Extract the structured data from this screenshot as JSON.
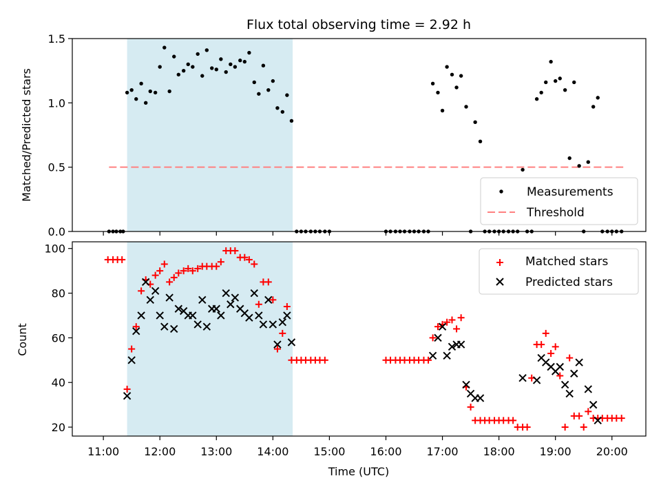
{
  "chart_data": [
    {
      "type": "scatter",
      "title": "Flux total observing time = 2.92 h",
      "xlabel": "",
      "ylabel": "Matched/Predicted stars",
      "xlim": [
        10.45,
        20.6
      ],
      "ylim": [
        0,
        1.5
      ],
      "yticks": [
        0.0,
        0.5,
        1.0,
        1.5
      ],
      "ytick_labels": [
        "0.0",
        "0.5",
        "1.0",
        "1.5"
      ],
      "grid": false,
      "legend_position": "lower-right",
      "shaded_region": {
        "x": [
          11.42,
          14.35
        ],
        "color": "#add8e6"
      },
      "threshold": {
        "name": "Threshold",
        "y": 0.5,
        "x": [
          11.1,
          20.2
        ],
        "color": "#ff8080",
        "style": "dashed"
      },
      "series": [
        {
          "name": "Measurements",
          "marker": "dot",
          "color": "#000000",
          "x": [
            11.1,
            11.17,
            11.23,
            11.3,
            11.35,
            11.42,
            11.5,
            11.58,
            11.67,
            11.75,
            11.83,
            11.92,
            12.0,
            12.08,
            12.17,
            12.25,
            12.33,
            12.42,
            12.5,
            12.58,
            12.67,
            12.75,
            12.83,
            12.92,
            13.0,
            13.08,
            13.17,
            13.25,
            13.33,
            13.42,
            13.5,
            13.58,
            13.67,
            13.75,
            13.83,
            13.92,
            14.0,
            14.08,
            14.17,
            14.25,
            14.33,
            14.42,
            14.5,
            14.58,
            14.67,
            14.75,
            14.83,
            14.92,
            15.0,
            16.0,
            16.08,
            16.17,
            16.25,
            16.33,
            16.42,
            16.5,
            16.58,
            16.67,
            16.75,
            16.83,
            16.92,
            17.0,
            17.08,
            17.17,
            17.25,
            17.33,
            17.42,
            17.5,
            17.58,
            17.67,
            17.75,
            17.83,
            17.92,
            18.0,
            18.08,
            18.17,
            18.25,
            18.33,
            18.42,
            18.5,
            18.58,
            18.67,
            18.75,
            18.83,
            18.92,
            19.0,
            19.08,
            19.17,
            19.25,
            19.33,
            19.42,
            19.5,
            19.58,
            19.67,
            19.75,
            19.83,
            19.92,
            20.0,
            20.08,
            20.17
          ],
          "y": [
            0,
            0,
            0,
            0,
            0,
            1.08,
            1.1,
            1.03,
            1.15,
            1.0,
            1.09,
            1.08,
            1.28,
            1.43,
            1.09,
            1.36,
            1.22,
            1.25,
            1.3,
            1.28,
            1.38,
            1.21,
            1.41,
            1.27,
            1.26,
            1.34,
            1.24,
            1.3,
            1.28,
            1.33,
            1.32,
            1.39,
            1.16,
            1.07,
            1.29,
            1.1,
            1.17,
            0.96,
            0.93,
            1.06,
            0.86,
            0,
            0,
            0,
            0,
            0,
            0,
            0,
            0,
            0,
            0,
            0,
            0,
            0,
            0,
            0,
            0,
            0,
            0,
            1.15,
            1.08,
            0.94,
            1.28,
            1.22,
            1.12,
            1.21,
            0.97,
            0,
            0.85,
            0.7,
            0,
            0,
            0,
            0,
            0,
            0,
            0,
            0,
            0.48,
            0,
            0,
            1.03,
            1.08,
            1.16,
            1.32,
            1.17,
            1.19,
            1.1,
            0.57,
            1.16,
            0.51,
            0,
            0.54,
            0.97,
            1.04,
            0,
            0,
            0,
            0,
            0
          ]
        }
      ]
    },
    {
      "type": "scatter",
      "title": "",
      "xlabel": "Time (UTC)",
      "ylabel": "Count",
      "xlim": [
        10.45,
        20.6
      ],
      "ylim": [
        16,
        103
      ],
      "yticks": [
        20,
        40,
        60,
        80,
        100
      ],
      "ytick_labels": [
        "20",
        "40",
        "60",
        "80",
        "100"
      ],
      "xticks": [
        11,
        12,
        13,
        14,
        15,
        16,
        17,
        18,
        19,
        20
      ],
      "xtick_labels": [
        "11:00",
        "12:00",
        "13:00",
        "14:00",
        "15:00",
        "16:00",
        "17:00",
        "18:00",
        "19:00",
        "20:00"
      ],
      "grid": false,
      "legend_position": "top-right",
      "shaded_region": {
        "x": [
          11.42,
          14.35
        ],
        "color": "#add8e6"
      },
      "series": [
        {
          "name": "Matched stars",
          "marker": "plus",
          "color": "#ff0000",
          "x": [
            11.08,
            11.17,
            11.25,
            11.33,
            11.42,
            11.5,
            11.58,
            11.67,
            11.75,
            11.83,
            11.92,
            12.0,
            12.08,
            12.17,
            12.25,
            12.33,
            12.42,
            12.5,
            12.58,
            12.67,
            12.75,
            12.83,
            12.92,
            13.0,
            13.08,
            13.17,
            13.25,
            13.33,
            13.42,
            13.5,
            13.58,
            13.67,
            13.75,
            13.83,
            13.92,
            14.0,
            14.08,
            14.17,
            14.25,
            14.33,
            14.42,
            14.5,
            14.58,
            14.67,
            14.75,
            14.83,
            14.92,
            16.0,
            16.08,
            16.17,
            16.25,
            16.33,
            16.42,
            16.5,
            16.58,
            16.67,
            16.75,
            16.83,
            16.92,
            17.0,
            17.08,
            17.17,
            17.25,
            17.33,
            17.42,
            17.5,
            17.58,
            17.67,
            17.75,
            17.83,
            17.92,
            18.0,
            18.08,
            18.17,
            18.25,
            18.33,
            18.42,
            18.5,
            18.58,
            18.67,
            18.75,
            18.83,
            18.92,
            19.0,
            19.08,
            19.17,
            19.25,
            19.33,
            19.42,
            19.5,
            19.58,
            19.67,
            19.75,
            19.83,
            19.92,
            20.0,
            20.08,
            20.17
          ],
          "y": [
            95,
            95,
            95,
            95,
            37,
            55,
            65,
            81,
            86,
            84,
            88,
            90,
            93,
            85,
            87,
            89,
            90,
            91,
            90,
            91,
            92,
            92,
            92,
            92,
            94,
            99,
            99,
            99,
            96,
            96,
            95,
            93,
            75,
            85,
            85,
            77,
            55,
            62,
            74,
            50,
            50,
            50,
            50,
            50,
            50,
            50,
            50,
            50,
            50,
            50,
            50,
            50,
            50,
            50,
            50,
            50,
            50,
            60,
            65,
            66,
            67,
            68,
            64,
            69,
            38,
            29,
            23,
            23,
            23,
            23,
            23,
            23,
            23,
            23,
            23,
            20,
            20,
            20,
            42,
            57,
            57,
            62,
            53,
            56,
            43,
            20,
            51,
            25,
            25,
            20,
            27,
            24,
            24,
            24,
            24,
            24,
            24,
            24
          ]
        },
        {
          "name": "Predicted stars",
          "marker": "x",
          "color": "#000000",
          "x": [
            11.42,
            11.5,
            11.58,
            11.67,
            11.75,
            11.83,
            11.92,
            12.0,
            12.08,
            12.17,
            12.25,
            12.33,
            12.42,
            12.5,
            12.58,
            12.67,
            12.75,
            12.83,
            12.92,
            13.0,
            13.08,
            13.17,
            13.25,
            13.33,
            13.42,
            13.5,
            13.58,
            13.67,
            13.75,
            13.83,
            13.92,
            14.0,
            14.08,
            14.17,
            14.25,
            14.33,
            16.83,
            16.92,
            17.0,
            17.08,
            17.17,
            17.25,
            17.33,
            17.42,
            17.5,
            17.58,
            17.67,
            18.42,
            18.67,
            18.75,
            18.83,
            18.92,
            19.0,
            19.08,
            19.17,
            19.25,
            19.33,
            19.42,
            19.58,
            19.67,
            19.75
          ],
          "y": [
            34,
            50,
            63,
            70,
            85,
            77,
            81,
            70,
            65,
            78,
            64,
            73,
            72,
            70,
            70,
            66,
            77,
            65,
            73,
            73,
            70,
            80,
            75,
            78,
            73,
            71,
            69,
            80,
            70,
            66,
            77,
            66,
            57,
            67,
            70,
            58,
            52,
            60,
            65,
            52,
            56,
            57,
            57,
            39,
            35,
            33,
            33,
            42,
            41,
            51,
            49,
            47,
            45,
            47,
            39,
            35,
            44,
            49,
            37,
            30,
            23
          ]
        }
      ]
    }
  ]
}
